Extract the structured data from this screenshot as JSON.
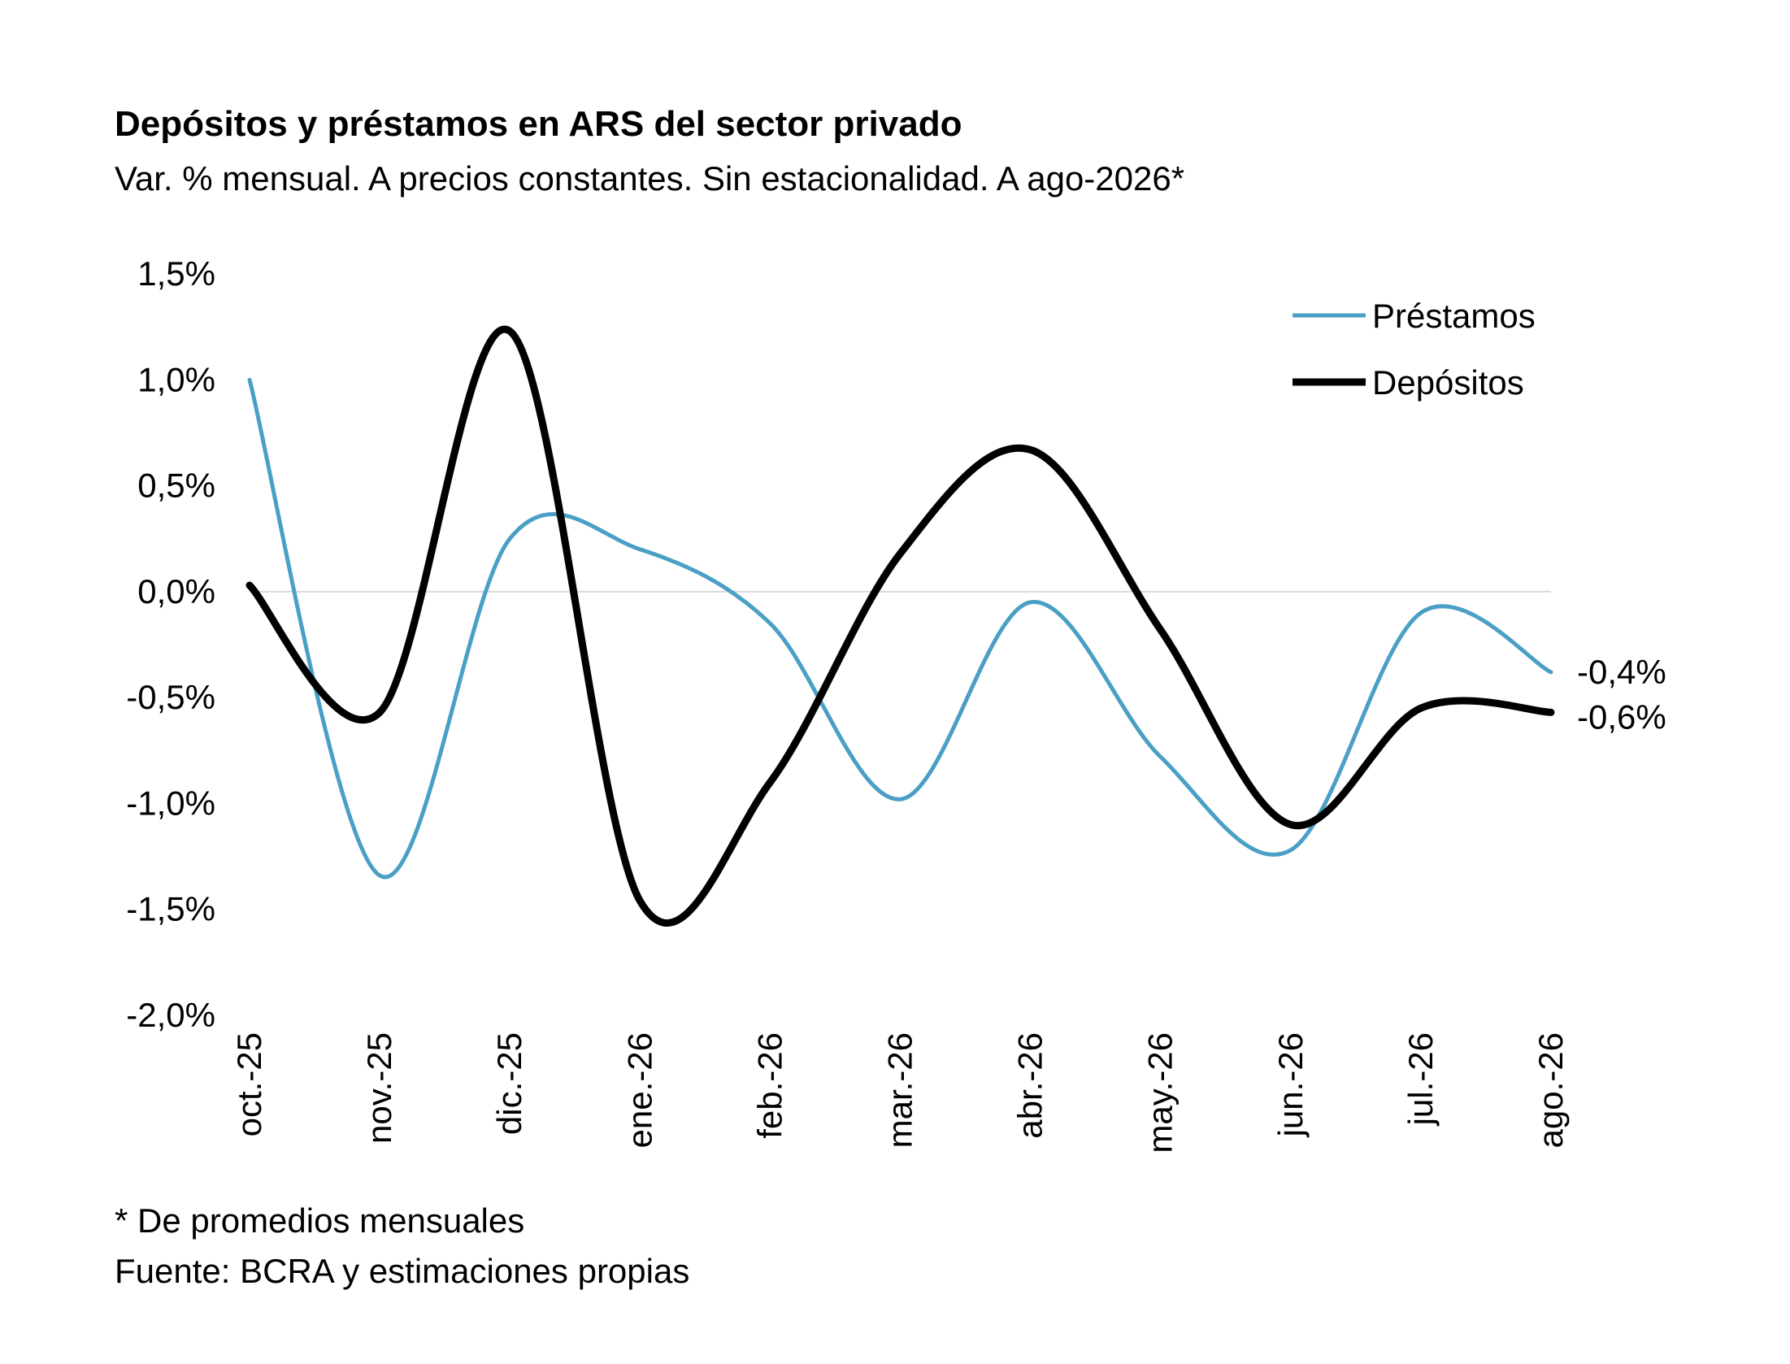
{
  "title": "Depósitos y préstamos en ARS del sector privado",
  "subtitle": "Var. % mensual. A precios constantes. Sin estacionalidad. A ago-2026*",
  "footnotes": {
    "note": "* De promedios mensuales",
    "source": "Fuente: BCRA y estimaciones propias"
  },
  "chart_data": {
    "type": "line",
    "categories": [
      "oct.-25",
      "nov.-25",
      "dic.-25",
      "ene.-26",
      "feb.-26",
      "mar.-26",
      "abr.-26",
      "may.-26",
      "jun.-26",
      "jul.-26",
      "ago.-26"
    ],
    "ylim": [
      -2.0,
      1.5
    ],
    "yticks": [
      1.5,
      1.0,
      0.5,
      0.0,
      -0.5,
      -1.0,
      -1.5,
      -2.0
    ],
    "ytick_labels": [
      "1,5%",
      "1,0%",
      "0,5%",
      "0,0%",
      "-0,5%",
      "-1,0%",
      "-1,5%",
      "-2,0%"
    ],
    "zero_line": true,
    "legend_position": "top-right",
    "series": [
      {
        "name": "Préstamos",
        "color": "#4a9fc5",
        "values": [
          1.0,
          -1.34,
          0.25,
          0.2,
          -0.15,
          -0.98,
          -0.05,
          -0.78,
          -1.22,
          -0.1,
          -0.38
        ],
        "end_label": "-0,4%"
      },
      {
        "name": "Depósitos",
        "color": "#000000",
        "values": [
          0.03,
          -0.57,
          1.23,
          -1.46,
          -0.9,
          0.18,
          0.67,
          -0.18,
          -1.1,
          -0.55,
          -0.57
        ],
        "end_label": "-0,6%"
      }
    ]
  }
}
